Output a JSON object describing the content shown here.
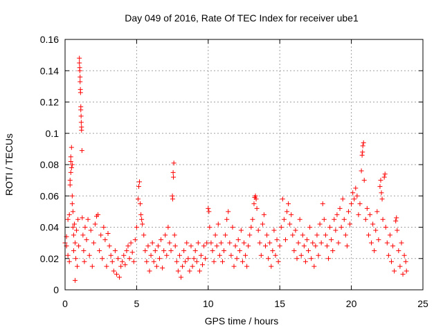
{
  "chart_data": {
    "type": "scatter",
    "title": "Day 049 of 2016, Rate Of TEC Index for receiver ube1",
    "xlabel": "GPS time / hours",
    "ylabel": "ROTI / TECUs",
    "xlim": [
      0,
      25
    ],
    "ylim": [
      0,
      0.16
    ],
    "xticks": [
      0,
      5,
      10,
      15,
      20,
      25
    ],
    "yticks": [
      0,
      0.02,
      0.04,
      0.06,
      0.08,
      0.1,
      0.12,
      0.14,
      0.16
    ],
    "xtick_labels": [
      "0",
      "5",
      "10",
      "15",
      "20",
      "25"
    ],
    "ytick_labels": [
      "0",
      "0.02",
      "0.04",
      "0.06",
      "0.08",
      "0.1",
      "0.12",
      "0.14",
      "0.16"
    ],
    "grid": true,
    "marker": "+",
    "color": "#ff0000",
    "points": [
      [
        0.0,
        0.03
      ],
      [
        0.1,
        0.028
      ],
      [
        0.1,
        0.034
      ],
      [
        0.2,
        0.045
      ],
      [
        0.2,
        0.022
      ],
      [
        0.3,
        0.048
      ],
      [
        0.3,
        0.018
      ],
      [
        0.35,
        0.07
      ],
      [
        0.35,
        0.067
      ],
      [
        0.4,
        0.075
      ],
      [
        0.4,
        0.082
      ],
      [
        0.4,
        0.085
      ],
      [
        0.45,
        0.091
      ],
      [
        0.45,
        0.078
      ],
      [
        0.5,
        0.08
      ],
      [
        0.5,
        0.06
      ],
      [
        0.5,
        0.055
      ],
      [
        0.55,
        0.05
      ],
      [
        0.55,
        0.04
      ],
      [
        0.6,
        0.035
      ],
      [
        0.6,
        0.025
      ],
      [
        0.65,
        0.042
      ],
      [
        0.7,
        0.03
      ],
      [
        0.7,
        0.006
      ],
      [
        0.75,
        0.02
      ],
      [
        0.8,
        0.038
      ],
      [
        0.85,
        0.015
      ],
      [
        0.9,
        0.045
      ],
      [
        0.95,
        0.028
      ],
      [
        1.0,
        0.148
      ],
      [
        1.0,
        0.145
      ],
      [
        1.02,
        0.142
      ],
      [
        1.03,
        0.14
      ],
      [
        1.05,
        0.136
      ],
      [
        1.05,
        0.133
      ],
      [
        1.07,
        0.128
      ],
      [
        1.08,
        0.126
      ],
      [
        1.1,
        0.117
      ],
      [
        1.1,
        0.115
      ],
      [
        1.12,
        0.111
      ],
      [
        1.13,
        0.107
      ],
      [
        1.15,
        0.104
      ],
      [
        1.15,
        0.102
      ],
      [
        1.18,
        0.089
      ],
      [
        1.2,
        0.046
      ],
      [
        1.25,
        0.035
      ],
      [
        1.3,
        0.025
      ],
      [
        1.35,
        0.018
      ],
      [
        1.4,
        0.04
      ],
      [
        1.5,
        0.032
      ],
      [
        1.6,
        0.045
      ],
      [
        1.7,
        0.022
      ],
      [
        1.8,
        0.038
      ],
      [
        1.9,
        0.015
      ],
      [
        2.0,
        0.03
      ],
      [
        2.1,
        0.042
      ],
      [
        2.2,
        0.047
      ],
      [
        2.3,
        0.048
      ],
      [
        2.4,
        0.025
      ],
      [
        2.5,
        0.035
      ],
      [
        2.6,
        0.02
      ],
      [
        2.7,
        0.04
      ],
      [
        2.8,
        0.032
      ],
      [
        2.9,
        0.015
      ],
      [
        3.0,
        0.036
      ],
      [
        3.1,
        0.028
      ],
      [
        3.2,
        0.022
      ],
      [
        3.3,
        0.018
      ],
      [
        3.4,
        0.012
      ],
      [
        3.5,
        0.025
      ],
      [
        3.6,
        0.01
      ],
      [
        3.7,
        0.02
      ],
      [
        3.8,
        0.008
      ],
      [
        3.9,
        0.015
      ],
      [
        4.0,
        0.018
      ],
      [
        4.1,
        0.022
      ],
      [
        4.2,
        0.016
      ],
      [
        4.3,
        0.025
      ],
      [
        4.4,
        0.028
      ],
      [
        4.5,
        0.02
      ],
      [
        4.6,
        0.03
      ],
      [
        4.7,
        0.024
      ],
      [
        4.8,
        0.018
      ],
      [
        4.9,
        0.032
      ],
      [
        5.0,
        0.04
      ],
      [
        5.1,
        0.058
      ],
      [
        5.15,
        0.066
      ],
      [
        5.2,
        0.069
      ],
      [
        5.25,
        0.055
      ],
      [
        5.3,
        0.048
      ],
      [
        5.35,
        0.045
      ],
      [
        5.4,
        0.042
      ],
      [
        5.5,
        0.035
      ],
      [
        5.6,
        0.025
      ],
      [
        5.7,
        0.018
      ],
      [
        5.8,
        0.028
      ],
      [
        5.9,
        0.012
      ],
      [
        6.0,
        0.022
      ],
      [
        6.1,
        0.03
      ],
      [
        6.2,
        0.018
      ],
      [
        6.3,
        0.025
      ],
      [
        6.4,
        0.015
      ],
      [
        6.5,
        0.028
      ],
      [
        6.6,
        0.02
      ],
      [
        6.7,
        0.032
      ],
      [
        6.8,
        0.014
      ],
      [
        6.9,
        0.025
      ],
      [
        7.0,
        0.035
      ],
      [
        7.1,
        0.022
      ],
      [
        7.2,
        0.04
      ],
      [
        7.3,
        0.03
      ],
      [
        7.4,
        0.025
      ],
      [
        7.5,
        0.06
      ],
      [
        7.52,
        0.058
      ],
      [
        7.55,
        0.075
      ],
      [
        7.57,
        0.072
      ],
      [
        7.6,
        0.081
      ],
      [
        7.65,
        0.035
      ],
      [
        7.7,
        0.028
      ],
      [
        7.8,
        0.018
      ],
      [
        7.9,
        0.012
      ],
      [
        8.0,
        0.022
      ],
      [
        8.1,
        0.008
      ],
      [
        8.2,
        0.015
      ],
      [
        8.3,
        0.025
      ],
      [
        8.4,
        0.018
      ],
      [
        8.5,
        0.03
      ],
      [
        8.6,
        0.02
      ],
      [
        8.7,
        0.012
      ],
      [
        8.8,
        0.028
      ],
      [
        8.9,
        0.015
      ],
      [
        9.0,
        0.02
      ],
      [
        9.1,
        0.025
      ],
      [
        9.2,
        0.018
      ],
      [
        9.3,
        0.03
      ],
      [
        9.4,
        0.012
      ],
      [
        9.5,
        0.022
      ],
      [
        9.6,
        0.016
      ],
      [
        9.7,
        0.028
      ],
      [
        9.8,
        0.02
      ],
      [
        9.9,
        0.03
      ],
      [
        10.0,
        0.052
      ],
      [
        10.05,
        0.05
      ],
      [
        10.1,
        0.04
      ],
      [
        10.2,
        0.03
      ],
      [
        10.3,
        0.025
      ],
      [
        10.4,
        0.018
      ],
      [
        10.5,
        0.035
      ],
      [
        10.6,
        0.028
      ],
      [
        10.7,
        0.042
      ],
      [
        10.8,
        0.022
      ],
      [
        10.9,
        0.03
      ],
      [
        11.0,
        0.018
      ],
      [
        11.1,
        0.025
      ],
      [
        11.2,
        0.035
      ],
      [
        11.3,
        0.045
      ],
      [
        11.4,
        0.05
      ],
      [
        11.5,
        0.03
      ],
      [
        11.6,
        0.022
      ],
      [
        11.7,
        0.04
      ],
      [
        11.8,
        0.015
      ],
      [
        11.9,
        0.028
      ],
      [
        12.0,
        0.02
      ],
      [
        12.1,
        0.032
      ],
      [
        12.2,
        0.025
      ],
      [
        12.3,
        0.038
      ],
      [
        12.4,
        0.018
      ],
      [
        12.5,
        0.03
      ],
      [
        12.6,
        0.022
      ],
      [
        12.7,
        0.015
      ],
      [
        12.8,
        0.028
      ],
      [
        12.9,
        0.035
      ],
      [
        13.0,
        0.04
      ],
      [
        13.1,
        0.045
      ],
      [
        13.2,
        0.055
      ],
      [
        13.25,
        0.059
      ],
      [
        13.3,
        0.06
      ],
      [
        13.35,
        0.058
      ],
      [
        13.4,
        0.052
      ],
      [
        13.5,
        0.038
      ],
      [
        13.6,
        0.03
      ],
      [
        13.7,
        0.022
      ],
      [
        13.8,
        0.042
      ],
      [
        13.9,
        0.048
      ],
      [
        14.0,
        0.028
      ],
      [
        14.1,
        0.035
      ],
      [
        14.2,
        0.02
      ],
      [
        14.3,
        0.03
      ],
      [
        14.4,
        0.015
      ],
      [
        14.5,
        0.025
      ],
      [
        14.6,
        0.038
      ],
      [
        14.7,
        0.022
      ],
      [
        14.8,
        0.032
      ],
      [
        14.9,
        0.018
      ],
      [
        15.0,
        0.028
      ],
      [
        15.1,
        0.04
      ],
      [
        15.2,
        0.058
      ],
      [
        15.3,
        0.045
      ],
      [
        15.4,
        0.032
      ],
      [
        15.5,
        0.05
      ],
      [
        15.6,
        0.055
      ],
      [
        15.7,
        0.042
      ],
      [
        15.8,
        0.048
      ],
      [
        15.9,
        0.035
      ],
      [
        16.0,
        0.025
      ],
      [
        16.1,
        0.038
      ],
      [
        16.2,
        0.02
      ],
      [
        16.3,
        0.03
      ],
      [
        16.4,
        0.045
      ],
      [
        16.5,
        0.022
      ],
      [
        16.6,
        0.035
      ],
      [
        16.7,
        0.028
      ],
      [
        16.8,
        0.018
      ],
      [
        16.9,
        0.032
      ],
      [
        17.0,
        0.025
      ],
      [
        17.1,
        0.04
      ],
      [
        17.2,
        0.02
      ],
      [
        17.3,
        0.03
      ],
      [
        17.4,
        0.015
      ],
      [
        17.5,
        0.028
      ],
      [
        17.6,
        0.035
      ],
      [
        17.7,
        0.022
      ],
      [
        17.8,
        0.042
      ],
      [
        17.9,
        0.03
      ],
      [
        18.0,
        0.055
      ],
      [
        18.1,
        0.045
      ],
      [
        18.2,
        0.035
      ],
      [
        18.3,
        0.028
      ],
      [
        18.4,
        0.02
      ],
      [
        18.5,
        0.04
      ],
      [
        18.6,
        0.032
      ],
      [
        18.7,
        0.025
      ],
      [
        18.8,
        0.045
      ],
      [
        18.9,
        0.038
      ],
      [
        19.0,
        0.048
      ],
      [
        19.1,
        0.03
      ],
      [
        19.2,
        0.052
      ],
      [
        19.3,
        0.04
      ],
      [
        19.4,
        0.058
      ],
      [
        19.5,
        0.045
      ],
      [
        19.6,
        0.035
      ],
      [
        19.7,
        0.028
      ],
      [
        19.8,
        0.05
      ],
      [
        19.9,
        0.042
      ],
      [
        20.0,
        0.055
      ],
      [
        20.1,
        0.062
      ],
      [
        20.2,
        0.058
      ],
      [
        20.3,
        0.065
      ],
      [
        20.4,
        0.06
      ],
      [
        20.5,
        0.048
      ],
      [
        20.6,
        0.055
      ],
      [
        20.7,
        0.076
      ],
      [
        20.75,
        0.086
      ],
      [
        20.78,
        0.088
      ],
      [
        20.8,
        0.092
      ],
      [
        20.85,
        0.094
      ],
      [
        20.9,
        0.07
      ],
      [
        21.0,
        0.045
      ],
      [
        21.1,
        0.052
      ],
      [
        21.2,
        0.035
      ],
      [
        21.3,
        0.048
      ],
      [
        21.4,
        0.03
      ],
      [
        21.5,
        0.042
      ],
      [
        21.6,
        0.025
      ],
      [
        21.7,
        0.038
      ],
      [
        21.8,
        0.05
      ],
      [
        21.9,
        0.032
      ],
      [
        22.0,
        0.066
      ],
      [
        22.05,
        0.07
      ],
      [
        22.1,
        0.062
      ],
      [
        22.15,
        0.058
      ],
      [
        22.2,
        0.045
      ],
      [
        22.3,
        0.072
      ],
      [
        22.35,
        0.074
      ],
      [
        22.4,
        0.04
      ],
      [
        22.5,
        0.03
      ],
      [
        22.6,
        0.022
      ],
      [
        22.7,
        0.035
      ],
      [
        22.8,
        0.018
      ],
      [
        22.9,
        0.028
      ],
      [
        23.0,
        0.012
      ],
      [
        23.1,
        0.044
      ],
      [
        23.15,
        0.046
      ],
      [
        23.2,
        0.038
      ],
      [
        23.3,
        0.025
      ],
      [
        23.4,
        0.015
      ],
      [
        23.5,
        0.03
      ],
      [
        23.6,
        0.01
      ],
      [
        23.7,
        0.022
      ],
      [
        23.8,
        0.018
      ],
      [
        23.85,
        0.012
      ]
    ]
  }
}
